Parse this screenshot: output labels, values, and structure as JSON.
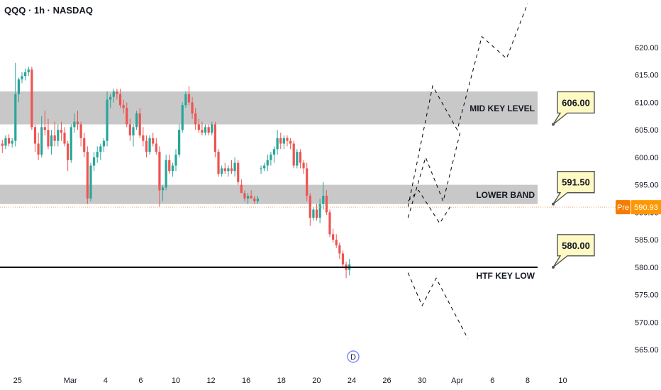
{
  "header": {
    "title": "QQQ · 1h · NASDAQ"
  },
  "colors": {
    "up": "#26a69a",
    "down": "#ef5350",
    "zone": "#c8c8c8",
    "callout_fill": "#fff9c4",
    "callout_stroke": "#555555",
    "pre_badge": "#f57c00",
    "pre_value_bg": "#ff9800",
    "current_price_line": "#f5a25d"
  },
  "chart_data": {
    "type": "candlestick",
    "y_axis": {
      "min": 561,
      "max": 624,
      "position": "right",
      "ticks": [
        565,
        570,
        575,
        580,
        585,
        590,
        595,
        600,
        605,
        610,
        615,
        620
      ],
      "tick_labels": [
        "565.00",
        "570.00",
        "575.00",
        "580.00",
        "585.00",
        "590.00",
        "595.00",
        "600.00",
        "605.00",
        "610.00",
        "615.00",
        "620.00"
      ]
    },
    "x_axis": {
      "ticks": [
        {
          "label": "25",
          "x": -2
        },
        {
          "label": "Mar",
          "x": 13
        },
        {
          "label": "4",
          "x": 23
        },
        {
          "label": "6",
          "x": 33
        },
        {
          "label": "10",
          "x": 43
        },
        {
          "label": "12",
          "x": 53
        },
        {
          "label": "16",
          "x": 63
        },
        {
          "label": "18",
          "x": 73
        },
        {
          "label": "20",
          "x": 83
        },
        {
          "label": "24",
          "x": 93
        },
        {
          "label": "26",
          "x": 103
        },
        {
          "label": "30",
          "x": 113
        },
        {
          "label": "Apr",
          "x": 123
        },
        {
          "label": "6",
          "x": 133
        },
        {
          "label": "8",
          "x": 143
        },
        {
          "label": "10",
          "x": 153
        }
      ],
      "x_range": [
        -7,
        166
      ]
    },
    "candles_ohlc": [
      [
        602.5,
        603.2,
        600.8,
        602.1
      ],
      [
        602.1,
        604.0,
        601.5,
        603.5
      ],
      [
        603.5,
        604.2,
        602.0,
        602.5
      ],
      [
        602.5,
        603.5,
        601.8,
        603.0
      ],
      [
        603.0,
        617.2,
        602.0,
        611.5
      ],
      [
        611.5,
        614.5,
        610.0,
        614.2
      ],
      [
        614.2,
        615.5,
        613.5,
        614.8
      ],
      [
        614.8,
        616.2,
        614.0,
        615.5
      ],
      [
        615.5,
        616.5,
        614.8,
        616.0
      ],
      [
        616.0,
        616.5,
        605.0,
        605.5
      ],
      [
        605.5,
        606.0,
        601.0,
        602.5
      ],
      [
        602.5,
        604.5,
        599.5,
        600.5
      ],
      [
        600.5,
        607.5,
        600.0,
        605.5
      ],
      [
        605.5,
        608.5,
        604.0,
        605.0
      ],
      [
        605.0,
        607.0,
        601.5,
        602.0
      ],
      [
        602.0,
        605.0,
        600.5,
        604.0
      ],
      [
        604.0,
        606.5,
        602.0,
        603.0
      ],
      [
        603.0,
        606.0,
        602.0,
        605.0
      ],
      [
        605.0,
        606.5,
        603.0,
        604.5
      ],
      [
        604.5,
        605.5,
        602.0,
        602.5
      ],
      [
        602.5,
        603.0,
        597.5,
        599.5
      ],
      [
        599.5,
        606.0,
        599.0,
        605.5
      ],
      [
        605.5,
        608.0,
        604.5,
        606.5
      ],
      [
        606.5,
        608.5,
        605.0,
        606.0
      ],
      [
        606.0,
        606.5,
        602.0,
        603.5
      ],
      [
        603.5,
        604.5,
        600.0,
        601.0
      ],
      [
        601.0,
        602.0,
        591.5,
        592.5
      ],
      [
        592.5,
        599.0,
        592.0,
        598.5
      ],
      [
        598.5,
        601.0,
        597.5,
        600.0
      ],
      [
        600.0,
        602.0,
        599.0,
        601.0
      ],
      [
        601.0,
        602.5,
        599.5,
        602.0
      ],
      [
        602.0,
        603.5,
        601.0,
        603.0
      ],
      [
        603.0,
        612.0,
        602.0,
        610.5
      ],
      [
        610.5,
        611.5,
        609.0,
        611.0
      ],
      [
        611.0,
        612.5,
        610.0,
        612.0
      ],
      [
        612.0,
        612.5,
        610.5,
        611.5
      ],
      [
        611.5,
        612.5,
        609.0,
        609.5
      ],
      [
        609.5,
        610.5,
        608.0,
        609.0
      ],
      [
        609.0,
        610.0,
        605.5,
        606.0
      ],
      [
        606.0,
        607.0,
        603.0,
        604.0
      ],
      [
        604.0,
        606.0,
        602.0,
        605.5
      ],
      [
        605.5,
        608.5,
        605.0,
        608.0
      ],
      [
        608.0,
        609.0,
        603.5,
        604.0
      ],
      [
        604.0,
        605.5,
        602.0,
        603.0
      ],
      [
        603.0,
        604.0,
        600.0,
        601.0
      ],
      [
        601.0,
        604.0,
        600.5,
        603.5
      ],
      [
        603.5,
        604.5,
        602.0,
        602.5
      ],
      [
        602.5,
        603.5,
        600.5,
        601.0
      ],
      [
        601.0,
        602.0,
        591.0,
        594.0
      ],
      [
        594.0,
        595.0,
        592.0,
        594.5
      ],
      [
        594.5,
        600.5,
        594.0,
        599.5
      ],
      [
        599.5,
        600.5,
        597.0,
        597.5
      ],
      [
        597.5,
        599.0,
        596.5,
        598.5
      ],
      [
        598.5,
        601.5,
        597.5,
        600.5
      ],
      [
        600.5,
        606.0,
        600.0,
        605.0
      ],
      [
        605.0,
        610.0,
        604.5,
        609.5
      ],
      [
        609.5,
        612.0,
        609.0,
        611.5
      ],
      [
        611.5,
        613.0,
        609.5,
        610.0
      ],
      [
        610.0,
        611.0,
        607.0,
        608.0
      ],
      [
        608.0,
        609.0,
        605.0,
        606.0
      ],
      [
        606.0,
        607.0,
        604.5,
        605.0
      ],
      [
        605.0,
        606.5,
        604.0,
        604.5
      ],
      [
        604.5,
        606.0,
        604.0,
        605.5
      ],
      [
        605.5,
        606.0,
        604.0,
        604.5
      ],
      [
        604.5,
        606.5,
        604.0,
        606.0
      ],
      [
        606.0,
        606.5,
        600.0,
        601.0
      ],
      [
        601.0,
        601.5,
        596.5,
        597.0
      ],
      [
        597.0,
        598.5,
        596.5,
        598.0
      ],
      [
        598.0,
        599.0,
        597.0,
        597.5
      ],
      [
        597.5,
        598.5,
        596.5,
        598.0
      ],
      [
        598.0,
        599.5,
        597.0,
        597.5
      ],
      [
        597.5,
        600.0,
        596.5,
        599.0
      ],
      [
        599.0,
        599.5,
        595.0,
        595.5
      ],
      [
        595.0,
        596.0,
        593.5,
        593.5
      ],
      [
        593.5,
        594.0,
        592.0,
        592.5
      ],
      [
        592.5,
        593.5,
        591.5,
        593.0
      ],
      [
        593.0,
        594.0,
        592.5,
        592.5
      ],
      [
        592.5,
        593.0,
        591.5,
        592.0
      ],
      [
        592.0,
        593.0,
        591.5,
        592.5
      ],
      [
        598.0,
        598.5,
        597.0,
        598.0
      ],
      [
        598.0,
        599.0,
        597.5,
        598.5
      ],
      [
        598.5,
        600.5,
        597.5,
        599.5
      ],
      [
        599.5,
        601.0,
        598.5,
        600.5
      ],
      [
        600.5,
        602.0,
        599.0,
        601.5
      ],
      [
        601.5,
        605.0,
        600.5,
        603.5
      ],
      [
        603.5,
        604.5,
        601.5,
        602.5
      ],
      [
        602.5,
        604.0,
        601.5,
        603.5
      ],
      [
        603.5,
        604.0,
        602.0,
        603.0
      ],
      [
        603.0,
        603.5,
        601.5,
        602.5
      ],
      [
        602.5,
        603.0,
        598.0,
        598.5
      ],
      [
        598.5,
        601.5,
        598.0,
        601.0
      ],
      [
        601.0,
        601.5,
        598.0,
        599.0
      ],
      [
        599.0,
        599.5,
        597.0,
        598.0
      ],
      [
        598.0,
        599.0,
        592.0,
        593.0
      ],
      [
        593.0,
        593.5,
        587.5,
        589.0
      ],
      [
        589.0,
        591.0,
        588.5,
        590.5
      ],
      [
        590.5,
        591.5,
        588.5,
        589.0
      ],
      [
        589.0,
        592.5,
        588.0,
        591.5
      ],
      [
        591.5,
        595.5,
        590.5,
        593.0
      ],
      [
        593.0,
        594.0,
        589.5,
        590.0
      ],
      [
        590.0,
        590.5,
        585.5,
        586.0
      ],
      [
        586.0,
        587.0,
        584.5,
        585.0
      ],
      [
        585.0,
        586.0,
        583.5,
        584.0
      ],
      [
        584.0,
        584.5,
        581.5,
        582.5
      ],
      [
        582.5,
        583.0,
        580.0,
        580.5
      ],
      [
        580.5,
        581.0,
        578.0,
        579.5
      ],
      [
        579.5,
        581.5,
        578.5,
        580.5
      ]
    ],
    "annotations": {
      "zones": [
        {
          "label": "MID KEY LEVEL",
          "low": 606.0,
          "high": 612.0
        },
        {
          "label": "LOWER BAND",
          "low": 591.5,
          "high": 595.0
        }
      ],
      "line_label": "HTF KEY LOW",
      "line_price": 580.0,
      "callouts": [
        "606.00",
        "591.50",
        "580.00"
      ],
      "callout_prices": [
        606.0,
        591.5,
        580.0
      ],
      "current_price": 590.93,
      "pre_market_label": "Pre",
      "projections": [
        [
          [
            109,
            591
          ],
          [
            116,
            613
          ],
          [
            123,
            605
          ],
          [
            130,
            622
          ],
          [
            137,
            618
          ],
          [
            143,
            628
          ]
        ],
        [
          [
            109,
            589
          ],
          [
            114,
            600
          ],
          [
            119,
            592
          ],
          [
            124,
            605
          ]
        ],
        [
          [
            109,
            592
          ],
          [
            112,
            594
          ],
          [
            118,
            588
          ],
          [
            121,
            591
          ]
        ],
        [
          [
            109,
            579
          ],
          [
            113,
            573
          ],
          [
            117,
            578
          ],
          [
            126,
            567
          ]
        ]
      ],
      "event_marker": "D"
    }
  }
}
